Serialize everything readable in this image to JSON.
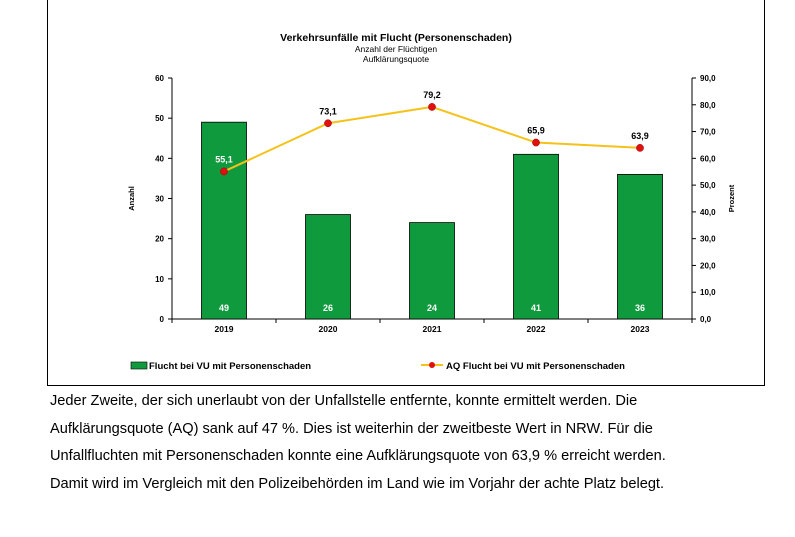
{
  "chart_data": {
    "type": "bar",
    "title": "Verkehrsunfälle mit Flucht (Personenschaden)",
    "subtitle_1": "Anzahl der Flüchtigen",
    "subtitle_2": "Aufklärungsquote",
    "categories": [
      "2019",
      "2020",
      "2021",
      "2022",
      "2023"
    ],
    "ylabel": "Anzahl",
    "y2label": "Prozent",
    "ylim": [
      0,
      60
    ],
    "y_ticks": [
      "0",
      "10",
      "20",
      "30",
      "40",
      "50",
      "60"
    ],
    "y2lim": [
      0,
      90
    ],
    "y2_ticks": [
      "0,0",
      "10,0",
      "20,0",
      "30,0",
      "40,0",
      "50,0",
      "60,0",
      "70,0",
      "80,0",
      "90,0"
    ],
    "series": [
      {
        "name": "Flucht bei VU mit Personenschaden",
        "kind": "bar",
        "axis": "left",
        "color": "#109A3E",
        "values": [
          49,
          26,
          24,
          41,
          36
        ],
        "labels": [
          "49",
          "26",
          "24",
          "41",
          "36"
        ]
      },
      {
        "name": "AQ Flucht bei VU mit Personenschaden",
        "kind": "line",
        "axis": "right",
        "color": "#F5C21A",
        "marker_color": "#E01010",
        "values": [
          55.1,
          73.1,
          79.2,
          65.9,
          63.9
        ],
        "labels": [
          "55,1",
          "73,1",
          "79,2",
          "65,9",
          "63,9"
        ]
      }
    ],
    "grid": false,
    "legend_position": "bottom"
  },
  "paragraph": {
    "lines": [
      "Jeder Zweite, der sich unerlaubt von der Unfallstelle entfernte, konnte ermittelt werden. Die",
      "Aufklärungsquote (AQ) sank auf 47 %. Dies ist weiterhin der zweitbeste Wert in NRW. Für die",
      "Unfallfluchten mit Personenschaden konnte eine Aufklärungsquote von 63,9 % erreicht werden.",
      "Damit wird im Vergleich mit den Polizeibehörden im Land wie im Vorjahr der achte Platz belegt."
    ]
  }
}
